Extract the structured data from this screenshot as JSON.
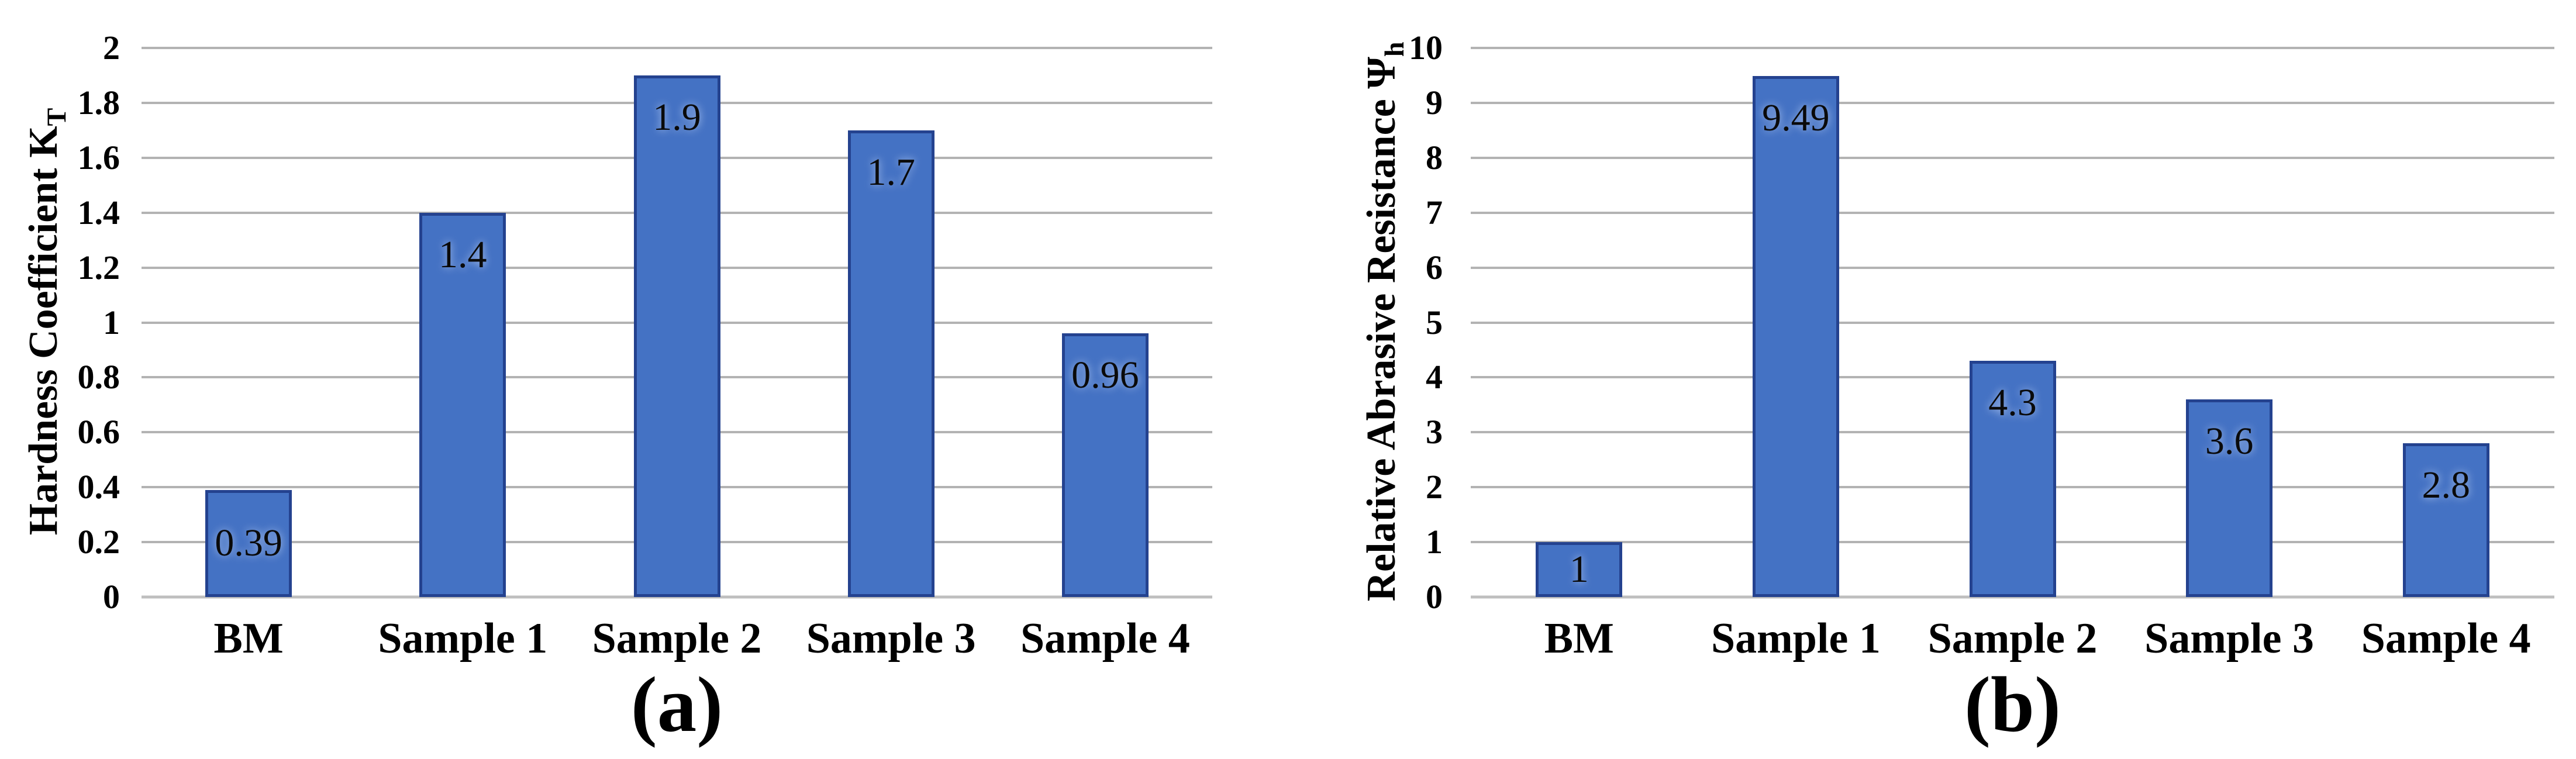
{
  "figure": {
    "background": "#FFFFFF"
  },
  "chart_data": [
    {
      "type": "bar",
      "title": "",
      "ylabel": "Hardness Coefficient K",
      "ylabel_subscript": "T",
      "xlabel": "",
      "categories": [
        "BM",
        "Sample 1",
        "Sample 2",
        "Sample 3",
        "Sample 4"
      ],
      "values": [
        0.39,
        1.4,
        1.9,
        1.7,
        0.96
      ],
      "value_labels": [
        "0.39",
        "1.4",
        "1.9",
        "1.7",
        "0.96"
      ],
      "ylim": [
        0,
        2
      ],
      "ytick_step": 0.2,
      "yticks": [
        "0",
        "0.2",
        "0.4",
        "0.6",
        "0.8",
        "1",
        "1.2",
        "1.4",
        "1.6",
        "1.8",
        "2"
      ],
      "grid": true,
      "legend": "none",
      "caption": "(a)",
      "bar_fill": "#4472C4",
      "bar_border": "#24428F",
      "gridline_color": "#B3B3B3",
      "baseline_color": "#BFBFBF"
    },
    {
      "type": "bar",
      "title": "",
      "ylabel": "Relative Abrasive Resistance Ψ",
      "ylabel_subscript": "h",
      "xlabel": "",
      "categories": [
        "BM",
        "Sample 1",
        "Sample 2",
        "Sample 3",
        "Sample 4"
      ],
      "values": [
        1,
        9.49,
        4.3,
        3.6,
        2.8
      ],
      "value_labels": [
        "1",
        "9.49",
        "4.3",
        "3.6",
        "2.8"
      ],
      "ylim": [
        0,
        10
      ],
      "ytick_step": 1,
      "yticks": [
        "0",
        "1",
        "2",
        "3",
        "4",
        "5",
        "6",
        "7",
        "8",
        "9",
        "10"
      ],
      "grid": true,
      "legend": "none",
      "caption": "(b)",
      "bar_fill": "#4472C4",
      "bar_border": "#24428F",
      "gridline_color": "#B3B3B3",
      "baseline_color": "#BFBFBF"
    }
  ]
}
